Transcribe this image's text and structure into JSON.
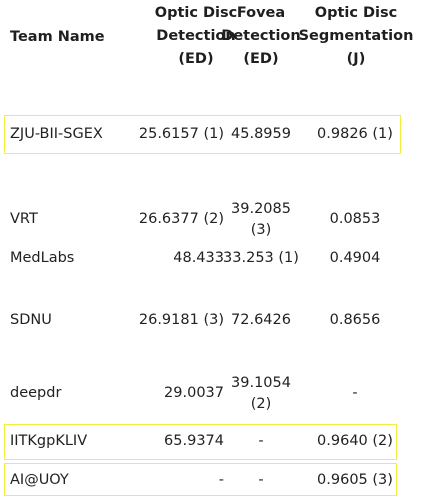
{
  "headers": {
    "team": "Team Name",
    "od_detection": [
      "Optic Disc",
      "Detection",
      "(ED)"
    ],
    "fovea_detection": [
      "Fovea",
      "Detection",
      "(ED)"
    ],
    "od_segmentation": [
      "Optic Disc",
      "Segmentation",
      "(J)"
    ]
  },
  "rows": [
    {
      "team": "ZJU-BII-SGEX",
      "od": "25.6157 (1)",
      "fovea": "45.8959",
      "seg": "0.9826 (1)",
      "highlighted": true
    },
    {
      "team": "VRT",
      "od": "26.6377 (2)",
      "fovea": "39.2085 (3)",
      "seg": "0.0853",
      "highlighted": false
    },
    {
      "team": "MedLabs",
      "od": "48.433",
      "fovea": "33.253 (1)",
      "seg": "0.4904",
      "highlighted": false
    },
    {
      "team": "SDNU",
      "od": "26.9181 (3)",
      "fovea": "72.6426",
      "seg": "0.8656",
      "highlighted": false
    },
    {
      "team": "deepdr",
      "od": "29.0037",
      "fovea": "39.1054 (2)",
      "seg": "-",
      "highlighted": false
    },
    {
      "team": "IITKgpKLIV",
      "od": "65.9374",
      "fovea": "-",
      "seg": "0.9640 (2)",
      "highlighted": true
    },
    {
      "team": "AI@UOY",
      "od": "-",
      "fovea": "-",
      "seg": "0.9605 (3)",
      "highlighted": true
    }
  ],
  "colors": {
    "highlight_border": "#f2f03c",
    "text": "#222222"
  }
}
